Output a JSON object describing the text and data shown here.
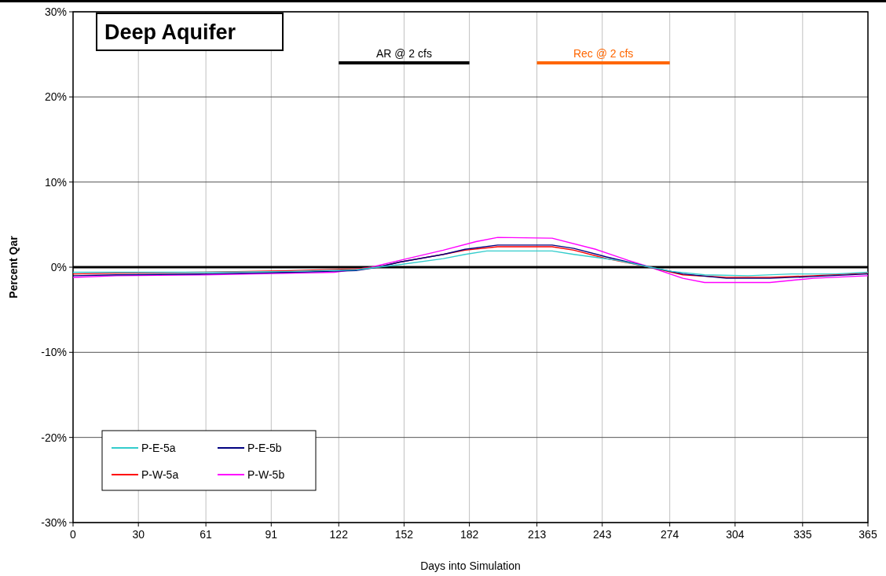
{
  "chart_data": {
    "type": "line",
    "title": "Deep Aquifer",
    "xlabel": "Days into Simulation",
    "ylabel": "Percent Qar",
    "xlim": [
      0,
      365
    ],
    "xticks": [
      0,
      30,
      61,
      91,
      122,
      152,
      182,
      213,
      243,
      274,
      304,
      335,
      365
    ],
    "ylim": [
      -30,
      30
    ],
    "yticks": [
      {
        "value": -30,
        "label": "-30%"
      },
      {
        "value": -20,
        "label": "-20%"
      },
      {
        "value": -10,
        "label": "-10%"
      },
      {
        "value": 0,
        "label": "0%"
      },
      {
        "value": 10,
        "label": "10%"
      },
      {
        "value": 20,
        "label": "20%"
      },
      {
        "value": 30,
        "label": "30%"
      }
    ],
    "grid": true,
    "legend": "bottom left",
    "marker": "none",
    "line_style": "solid",
    "series": [
      {
        "name": "P-E-5a",
        "color": "#33cccc",
        "x": [
          0,
          60,
          100,
          130,
          140,
          150,
          170,
          180,
          190,
          220,
          230,
          250,
          265,
          275,
          290,
          310,
          330,
          350,
          365
        ],
        "values": [
          -0.6,
          -0.6,
          -0.5,
          -0.3,
          0,
          0.3,
          1.0,
          1.5,
          1.9,
          1.9,
          1.5,
          0.8,
          0,
          -0.5,
          -0.9,
          -1.0,
          -0.8,
          -0.8,
          -0.6
        ]
      },
      {
        "name": "P-E-5b",
        "color": "#000080",
        "x": [
          0,
          20,
          60,
          100,
          130,
          140,
          150,
          170,
          180,
          195,
          220,
          230,
          245,
          265,
          280,
          300,
          320,
          340,
          365
        ],
        "values": [
          -1.0,
          -0.9,
          -0.8,
          -0.6,
          -0.4,
          0,
          0.6,
          1.5,
          2.1,
          2.6,
          2.6,
          2.2,
          1.2,
          0,
          -0.8,
          -1.3,
          -1.3,
          -1.1,
          -0.8
        ]
      },
      {
        "name": "P-W-5a",
        "color": "#ff0000",
        "x": [
          0,
          20,
          60,
          100,
          130,
          140,
          150,
          170,
          180,
          195,
          220,
          230,
          245,
          265,
          280,
          300,
          320,
          340,
          365
        ],
        "values": [
          -0.8,
          -0.7,
          -0.6,
          -0.4,
          -0.2,
          0,
          0.6,
          1.5,
          2.0,
          2.4,
          2.4,
          2.0,
          1.0,
          0,
          -0.9,
          -1.2,
          -1.2,
          -1.0,
          -0.7
        ]
      },
      {
        "name": "P-W-5b",
        "color": "#ff00ff",
        "x": [
          0,
          20,
          60,
          120,
          137,
          150,
          170,
          185,
          195,
          220,
          240,
          255,
          265,
          280,
          290,
          320,
          340,
          365
        ],
        "values": [
          -1.2,
          -1.0,
          -0.9,
          -0.6,
          0,
          0.8,
          2.0,
          3.0,
          3.5,
          3.4,
          2.1,
          0.8,
          0,
          -1.3,
          -1.8,
          -1.8,
          -1.3,
          -1.0
        ]
      },
      {
        "name": "AR @ 2 cfs",
        "type": "step",
        "color": "#000000",
        "x": [
          122,
          182
        ],
        "values": [
          24,
          24
        ]
      },
      {
        "name": "Rec @ 2 cfs",
        "type": "step",
        "color": "#ff6600",
        "x": [
          213,
          274
        ],
        "values": [
          24,
          24
        ]
      }
    ],
    "ref_lines": [
      {
        "axis": "y",
        "value": 0,
        "color": "#000000"
      }
    ]
  }
}
